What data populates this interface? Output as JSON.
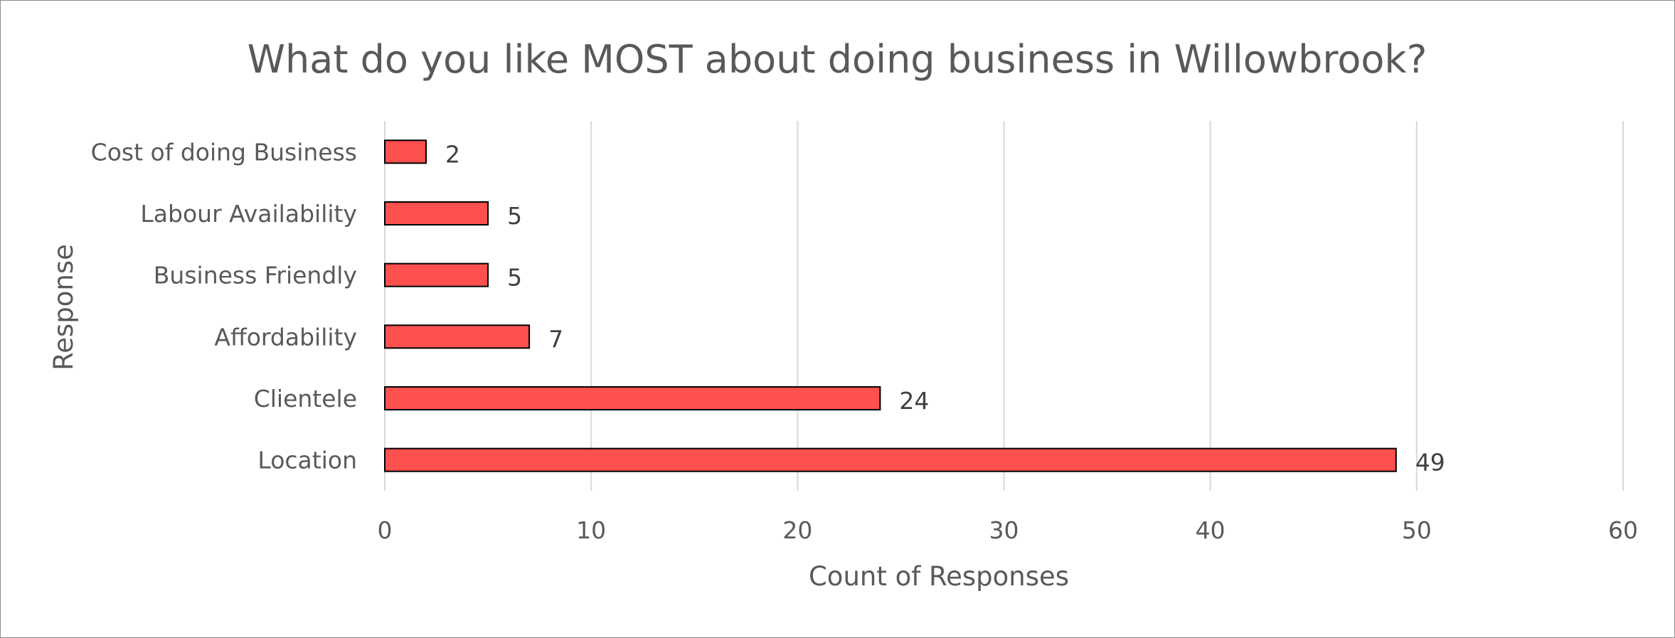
{
  "chart_data": {
    "type": "bar",
    "orientation": "horizontal",
    "title": "What do you like MOST about doing business in Willowbrook?",
    "xlabel": "Count of Responses",
    "ylabel": "Response",
    "categories": [
      "Location",
      "Clientele",
      "Affordability",
      "Business Friendly",
      "Labour Availability",
      "Cost of doing Business"
    ],
    "values": [
      49,
      24,
      7,
      5,
      5,
      2
    ],
    "xlim": [
      0,
      60
    ],
    "xticks": [
      0,
      10,
      20,
      30,
      40,
      50,
      60
    ],
    "data_labels": true,
    "grid": "vertical",
    "legend": "none",
    "bar_color": "#ff5050",
    "bar_edge_color": "#000000"
  }
}
